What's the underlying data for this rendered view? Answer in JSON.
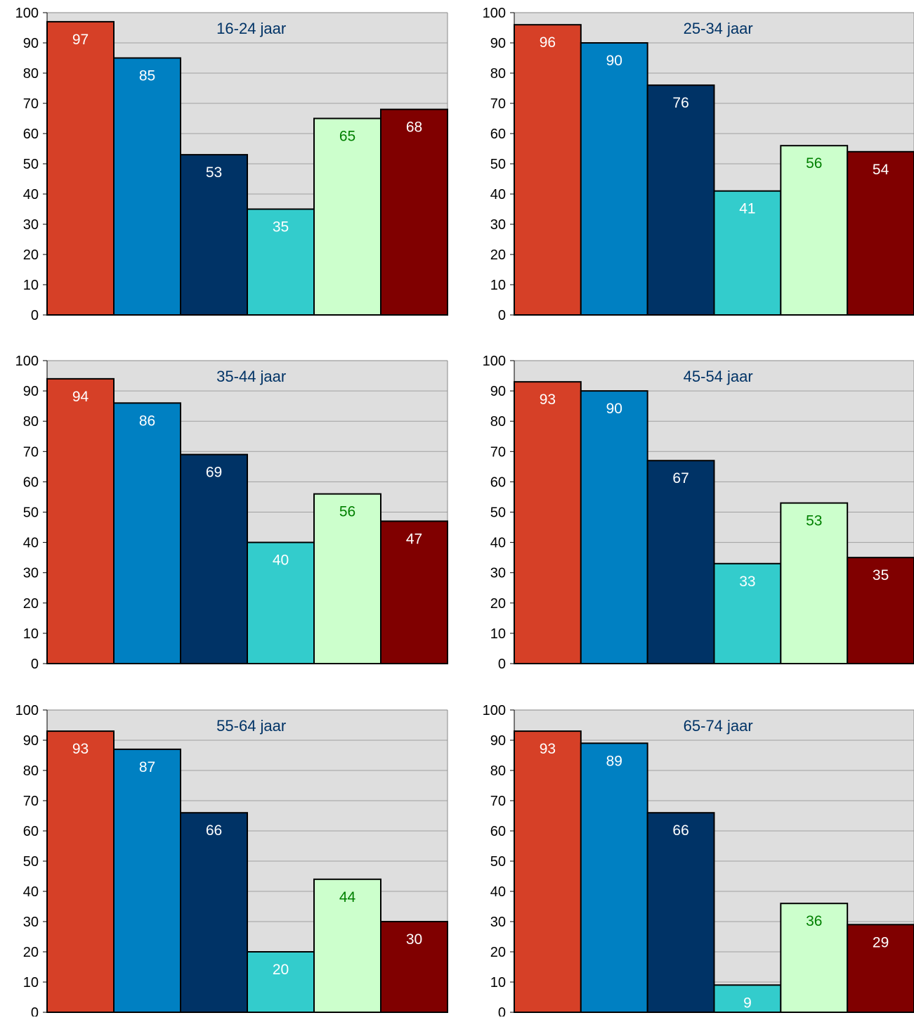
{
  "colors": {
    "plot_bg": "#dedede",
    "grid": "#a0a0a0",
    "title_text": "#003366",
    "axis_text": "#000000",
    "label_light": "#ffffff",
    "label_green": "#008000",
    "series_colors": [
      "#d64027",
      "#0080c2",
      "#003366",
      "#33cccc",
      "#ccffcc",
      "#800000"
    ],
    "label_colors": [
      "#ffffff",
      "#ffffff",
      "#ffffff",
      "#ffffff",
      "#008000",
      "#ffffff"
    ]
  },
  "chart_data": [
    {
      "type": "bar",
      "title": "16-24 jaar",
      "values": [
        97,
        85,
        53,
        35,
        65,
        68
      ],
      "ylim": [
        0,
        100
      ],
      "yticks": [
        0,
        10,
        20,
        30,
        40,
        50,
        60,
        70,
        80,
        90,
        100
      ],
      "grid": true,
      "legend": "none"
    },
    {
      "type": "bar",
      "title": "25-34 jaar",
      "values": [
        96,
        90,
        76,
        41,
        56,
        54
      ],
      "ylim": [
        0,
        100
      ],
      "yticks": [
        0,
        10,
        20,
        30,
        40,
        50,
        60,
        70,
        80,
        90,
        100
      ],
      "grid": true,
      "legend": "none"
    },
    {
      "type": "bar",
      "title": "35-44 jaar",
      "values": [
        94,
        86,
        69,
        40,
        56,
        47
      ],
      "ylim": [
        0,
        100
      ],
      "yticks": [
        0,
        10,
        20,
        30,
        40,
        50,
        60,
        70,
        80,
        90,
        100
      ],
      "grid": true,
      "legend": "none"
    },
    {
      "type": "bar",
      "title": "45-54 jaar",
      "values": [
        93,
        90,
        67,
        33,
        53,
        35
      ],
      "ylim": [
        0,
        100
      ],
      "yticks": [
        0,
        10,
        20,
        30,
        40,
        50,
        60,
        70,
        80,
        90,
        100
      ],
      "grid": true,
      "legend": "none"
    },
    {
      "type": "bar",
      "title": "55-64 jaar",
      "values": [
        93,
        87,
        66,
        20,
        44,
        30
      ],
      "ylim": [
        0,
        100
      ],
      "yticks": [
        0,
        10,
        20,
        30,
        40,
        50,
        60,
        70,
        80,
        90,
        100
      ],
      "grid": true,
      "legend": "none"
    },
    {
      "type": "bar",
      "title": "65-74 jaar",
      "values": [
        93,
        89,
        66,
        9,
        36,
        29
      ],
      "ylim": [
        0,
        100
      ],
      "yticks": [
        0,
        10,
        20,
        30,
        40,
        50,
        60,
        70,
        80,
        90,
        100
      ],
      "grid": true,
      "legend": "none"
    }
  ]
}
